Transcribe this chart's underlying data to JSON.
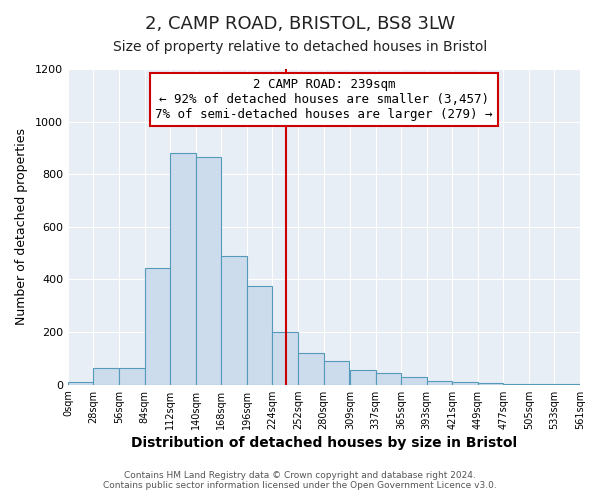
{
  "title": "2, CAMP ROAD, BRISTOL, BS8 3LW",
  "subtitle": "Size of property relative to detached houses in Bristol",
  "xlabel": "Distribution of detached houses by size in Bristol",
  "ylabel": "Number of detached properties",
  "bar_left_edges": [
    0,
    28,
    56,
    84,
    112,
    140,
    168,
    196,
    224,
    252,
    280,
    309,
    337,
    365,
    393,
    421,
    449,
    477,
    505,
    533
  ],
  "bar_heights": [
    10,
    65,
    65,
    445,
    880,
    865,
    490,
    375,
    200,
    120,
    90,
    57,
    45,
    30,
    15,
    12,
    5,
    2,
    1,
    1
  ],
  "bin_width": 28,
  "bar_color": "#ccdcec",
  "bar_edge_color": "#5599bb",
  "vline_x": 239,
  "vline_color": "#cc0000",
  "annotation_title": "2 CAMP ROAD: 239sqm",
  "annotation_line1": "← 92% of detached houses are smaller (3,457)",
  "annotation_line2": "7% of semi-detached houses are larger (279) →",
  "annotation_box_facecolor": "white",
  "annotation_box_edgecolor": "#cc0000",
  "xlim": [
    0,
    561
  ],
  "ylim": [
    0,
    1200
  ],
  "yticks": [
    0,
    200,
    400,
    600,
    800,
    1000,
    1200
  ],
  "xtick_labels": [
    "0sqm",
    "28sqm",
    "56sqm",
    "84sqm",
    "112sqm",
    "140sqm",
    "168sqm",
    "196sqm",
    "224sqm",
    "252sqm",
    "280sqm",
    "309sqm",
    "337sqm",
    "365sqm",
    "393sqm",
    "421sqm",
    "449sqm",
    "477sqm",
    "505sqm",
    "533sqm",
    "561sqm"
  ],
  "xtick_positions": [
    0,
    28,
    56,
    84,
    112,
    140,
    168,
    196,
    224,
    252,
    280,
    309,
    337,
    365,
    393,
    421,
    449,
    477,
    505,
    533,
    561
  ],
  "footer1": "Contains HM Land Registry data © Crown copyright and database right 2024.",
  "footer2": "Contains public sector information licensed under the Open Government Licence v3.0.",
  "plot_bg_color": "#e8eef5",
  "fig_bg_color": "#ffffff",
  "grid_color": "#ffffff",
  "title_fontsize": 13,
  "subtitle_fontsize": 10,
  "xlabel_fontsize": 10,
  "ylabel_fontsize": 9,
  "annotation_fontsize": 9,
  "footer_fontsize": 6.5
}
